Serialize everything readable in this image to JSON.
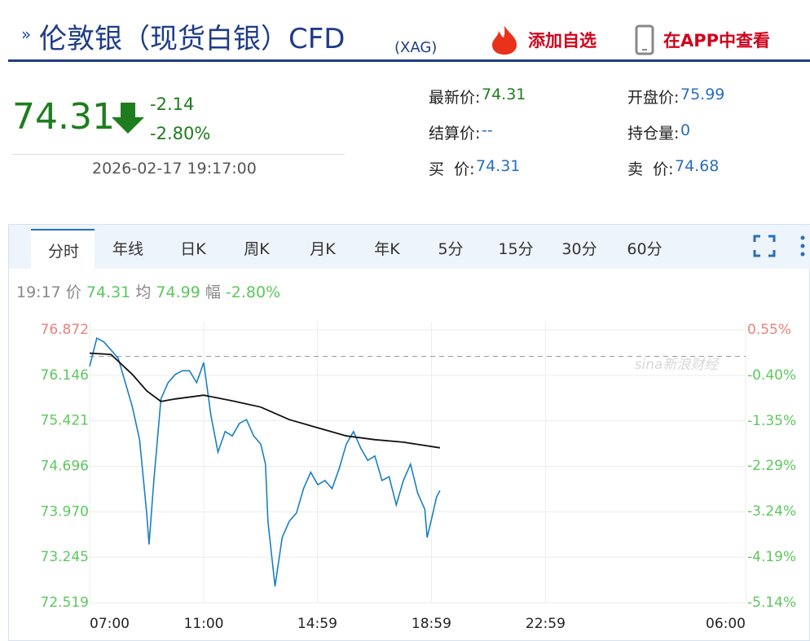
{
  "header": {
    "title": "伦敦银（现货白银）CFD",
    "code": "(XAG)",
    "add_watchlist": "添加自选",
    "open_app": "在APP中查看"
  },
  "quote": {
    "price": "74.31",
    "change": "-2.14",
    "change_pct": "-2.80%",
    "time": "2026-02-17 19:17:00",
    "fields": [
      {
        "label": "最新价:",
        "value": "74.31"
      },
      {
        "label": "开盘价:",
        "value": "75.99"
      },
      {
        "label": "结算价:",
        "value": "--"
      },
      {
        "label": "持仓量:",
        "value": "0"
      },
      {
        "label": "买  价:",
        "value": "74.31"
      },
      {
        "label": "卖  价:",
        "value": "74.68"
      }
    ]
  },
  "tabs": [
    "分时",
    "年线",
    "日K",
    "周K",
    "月K",
    "年K",
    "5分",
    "15分",
    "30分",
    "60分"
  ],
  "info": {
    "time": "19:17",
    "price_label": "价",
    "price": "74.31",
    "avg_label": "均",
    "avg": "74.99",
    "range_label": "幅",
    "range": "-2.80%"
  },
  "chart_data": {
    "type": "line",
    "watermark": "sina新浪财经",
    "xlim": [
      "07:00",
      "06:00"
    ],
    "xticks": [
      "07:00",
      "11:00",
      "14:59",
      "18:59",
      "22:59",
      "06:00"
    ],
    "ylim": [
      72.519,
      76.872
    ],
    "yticks": [
      72.519,
      73.245,
      {
        "value": 73.97,
        "label": "73.970"
      },
      74.696,
      75.421,
      76.146,
      76.872
    ],
    "y2lim": [
      -5.14,
      0.55
    ],
    "y2ticks": [
      {
        "value": -5.14,
        "label": "-5.14%"
      },
      {
        "value": -4.19,
        "label": "-4.19%"
      },
      {
        "value": -3.24,
        "label": "-3.24%"
      },
      {
        "value": -2.29,
        "label": "-2.29%"
      },
      {
        "value": -1.35,
        "label": "-1.35%"
      },
      {
        "value": -0.4,
        "label": "-0.40%"
      },
      {
        "value": 0.55,
        "label": "0.55%"
      }
    ],
    "grid": true,
    "baseline": 76.45,
    "up_color": "#e8837b",
    "down_color": "#5cc85c",
    "series": [
      {
        "color": "#1a7fc4",
        "x": [
          "07:00",
          "07:15",
          "07:30",
          "07:45",
          "08:00",
          "08:15",
          "08:30",
          "08:45",
          "09:00",
          "09:05",
          "09:15",
          "09:30",
          "09:45",
          "10:00",
          "10:15",
          "10:30",
          "10:45",
          "11:00",
          "11:15",
          "11:30",
          "11:45",
          "12:00",
          "12:15",
          "12:30",
          "12:45",
          "13:00",
          "13:10",
          "13:15",
          "13:30",
          "13:35",
          "13:45",
          "14:00",
          "14:15",
          "14:30",
          "14:45",
          "15:00",
          "15:15",
          "15:30",
          "15:45",
          "16:00",
          "16:15",
          "16:30",
          "16:45",
          "17:00",
          "17:15",
          "17:30",
          "17:45",
          "18:00",
          "18:15",
          "18:30",
          "18:45",
          "18:50",
          "19:00",
          "19:10",
          "19:17"
        ],
        "values": [
          76.29,
          76.74,
          76.68,
          76.55,
          76.42,
          76.03,
          75.64,
          75.12,
          73.95,
          73.45,
          74.47,
          75.77,
          76.03,
          76.16,
          76.22,
          76.22,
          76.03,
          76.35,
          75.51,
          74.92,
          75.25,
          75.18,
          75.38,
          75.44,
          75.18,
          75.05,
          74.73,
          73.82,
          72.78,
          73.04,
          73.56,
          73.82,
          73.95,
          74.34,
          74.6,
          74.4,
          74.47,
          74.34,
          74.66,
          75.05,
          75.25,
          74.99,
          74.79,
          74.86,
          74.47,
          74.53,
          74.08,
          74.47,
          74.73,
          74.27,
          74.01,
          73.56,
          73.88,
          74.21,
          74.31
        ]
      },
      {
        "color": "#111111",
        "x": [
          "07:00",
          "07:45",
          "08:30",
          "09:00",
          "09:30",
          "10:00",
          "11:00",
          "12:00",
          "13:00",
          "14:00",
          "15:00",
          "16:00",
          "17:00",
          "18:00",
          "19:17"
        ],
        "values": [
          76.5,
          76.48,
          76.16,
          75.9,
          75.73,
          75.77,
          75.83,
          75.74,
          75.64,
          75.44,
          75.31,
          75.18,
          75.12,
          75.08,
          74.99
        ]
      }
    ]
  }
}
